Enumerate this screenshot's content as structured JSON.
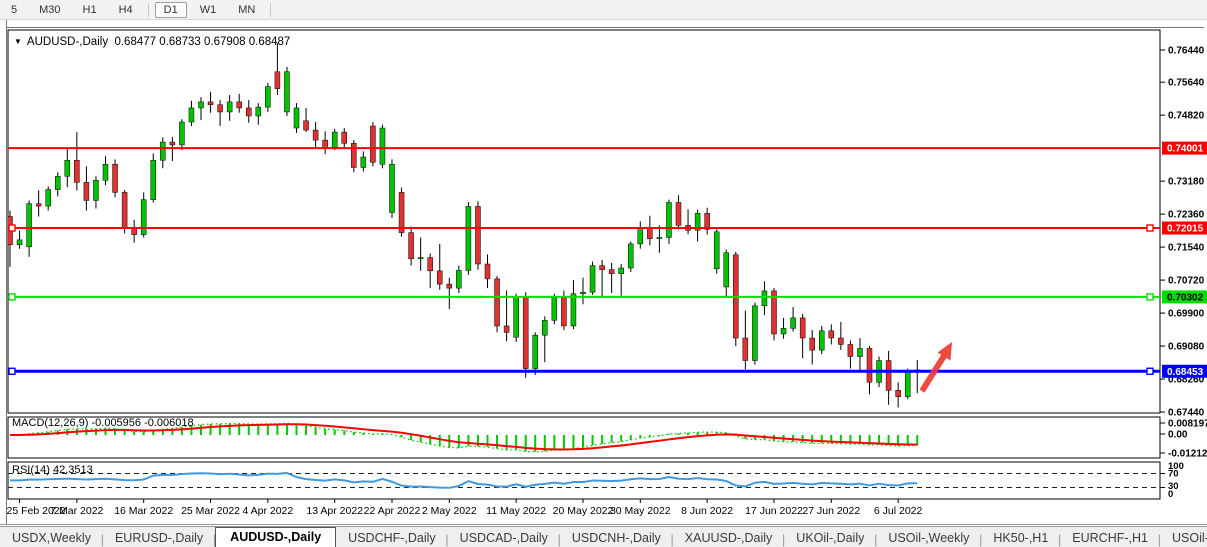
{
  "toolbar": {
    "timeframes": [
      "5",
      "M30",
      "H1",
      "H4",
      "D1",
      "W1",
      "MN"
    ],
    "active_timeframe": "D1"
  },
  "chart": {
    "title": "AUDUSD-,Daily",
    "ohlc_display": "0.68477 0.68733 0.67908 0.68487",
    "dropdown_icon": "▼",
    "up_color": "#00C400",
    "down_color": "#E13232",
    "y_axis_labels": [
      "0.76440",
      "0.75640",
      "0.74820",
      "0.73180",
      "0.72360",
      "0.71540",
      "0.70720",
      "0.69900",
      "0.69080",
      "0.68260",
      "0.67440"
    ],
    "horizontal_lines": [
      {
        "label": "0.74001",
        "price": 0.74001,
        "color": "#FF0000",
        "badge_bg": "#FF0000",
        "badge_fg": "#FFFFFF",
        "width": 2,
        "handles": false
      },
      {
        "label": "0.72015",
        "price": 0.72015,
        "color": "#FF0000",
        "badge_bg": "#FF0000",
        "badge_fg": "#FFFFFF",
        "width": 2,
        "handles": true
      },
      {
        "label": "0.70302",
        "price": 0.70302,
        "color": "#00E000",
        "badge_bg": "#00DD00",
        "badge_fg": "#000000",
        "width": 2,
        "handles": true
      },
      {
        "label": "0.68453",
        "price": 0.68453,
        "color": "#0000FF",
        "badge_bg": "#0000FF",
        "badge_fg": "#FFFFFF",
        "width": 3,
        "handles": true
      }
    ],
    "x_labels": [
      {
        "index": 1,
        "text": "25 Feb 2022"
      },
      {
        "index": 7,
        "text": "7 Mar 2022"
      },
      {
        "index": 14,
        "text": "16 Mar 2022"
      },
      {
        "index": 21,
        "text": "25 Mar 2022"
      },
      {
        "index": 27,
        "text": "4 Apr 2022"
      },
      {
        "index": 34,
        "text": "13 Apr 2022"
      },
      {
        "index": 40,
        "text": "22 Apr 2022"
      },
      {
        "index": 46,
        "text": "2 May 2022"
      },
      {
        "index": 53,
        "text": "11 May 2022"
      },
      {
        "index": 60,
        "text": "20 May 2022"
      },
      {
        "index": 66,
        "text": "30 May 2022"
      },
      {
        "index": 73,
        "text": "8 Jun 2022"
      },
      {
        "index": 80,
        "text": "17 Jun 2022"
      },
      {
        "index": 86,
        "text": "27 Jun 2022"
      },
      {
        "index": 93,
        "text": "6 Jul 2022"
      }
    ],
    "candles": [
      [
        0.723,
        0.7245,
        0.7105,
        0.716
      ],
      [
        0.716,
        0.7195,
        0.715,
        0.7172
      ],
      [
        0.7155,
        0.727,
        0.713,
        0.7262
      ],
      [
        0.7262,
        0.7295,
        0.723,
        0.7256
      ],
      [
        0.7256,
        0.7305,
        0.7245,
        0.7297
      ],
      [
        0.7297,
        0.734,
        0.728,
        0.733
      ],
      [
        0.733,
        0.74,
        0.7303,
        0.737
      ],
      [
        0.737,
        0.744,
        0.7295,
        0.7315
      ],
      [
        0.7315,
        0.7355,
        0.7245,
        0.727
      ],
      [
        0.727,
        0.733,
        0.725,
        0.732
      ],
      [
        0.732,
        0.738,
        0.7308,
        0.736
      ],
      [
        0.736,
        0.7372,
        0.7278,
        0.729
      ],
      [
        0.729,
        0.7296,
        0.7188,
        0.72
      ],
      [
        0.72,
        0.7222,
        0.7165,
        0.7185
      ],
      [
        0.7185,
        0.729,
        0.7178,
        0.7272
      ],
      [
        0.7272,
        0.7387,
        0.7265,
        0.737
      ],
      [
        0.737,
        0.7427,
        0.735,
        0.7415
      ],
      [
        0.7415,
        0.7428,
        0.7368,
        0.7408
      ],
      [
        0.7408,
        0.7472,
        0.7395,
        0.7465
      ],
      [
        0.7465,
        0.7518,
        0.7455,
        0.75
      ],
      [
        0.75,
        0.7527,
        0.747,
        0.7515
      ],
      [
        0.7515,
        0.754,
        0.7488,
        0.7508
      ],
      [
        0.7508,
        0.752,
        0.7455,
        0.749
      ],
      [
        0.749,
        0.7532,
        0.7468,
        0.7515
      ],
      [
        0.7515,
        0.7535,
        0.7488,
        0.75
      ],
      [
        0.75,
        0.752,
        0.7463,
        0.748
      ],
      [
        0.748,
        0.7512,
        0.7458,
        0.7502
      ],
      [
        0.7502,
        0.7562,
        0.749,
        0.7553
      ],
      [
        0.759,
        0.7661,
        0.7532,
        0.7548
      ],
      [
        0.749,
        0.7602,
        0.748,
        0.759
      ],
      [
        0.745,
        0.7512,
        0.7438,
        0.75
      ],
      [
        0.7468,
        0.75,
        0.744,
        0.7445
      ],
      [
        0.7445,
        0.7465,
        0.7398,
        0.742
      ],
      [
        0.742,
        0.7442,
        0.7385,
        0.7402
      ],
      [
        0.7402,
        0.7448,
        0.7395,
        0.744
      ],
      [
        0.744,
        0.745,
        0.7398,
        0.7412
      ],
      [
        0.7412,
        0.742,
        0.734,
        0.7352
      ],
      [
        0.7352,
        0.7392,
        0.7342,
        0.7378
      ],
      [
        0.7455,
        0.7465,
        0.7355,
        0.7365
      ],
      [
        0.736,
        0.7458,
        0.735,
        0.745
      ],
      [
        0.724,
        0.7372,
        0.7226,
        0.736
      ],
      [
        0.729,
        0.7302,
        0.718,
        0.719
      ],
      [
        0.719,
        0.7205,
        0.7108,
        0.7125
      ],
      [
        0.7125,
        0.7178,
        0.7095,
        0.7128
      ],
      [
        0.7128,
        0.7138,
        0.7052,
        0.7095
      ],
      [
        0.7095,
        0.7162,
        0.7048,
        0.7062
      ],
      [
        0.7062,
        0.7078,
        0.7,
        0.7052
      ],
      [
        0.7052,
        0.7108,
        0.704,
        0.7096
      ],
      [
        0.7096,
        0.7266,
        0.7085,
        0.7255
      ],
      [
        0.7255,
        0.7268,
        0.7098,
        0.7112
      ],
      [
        0.7112,
        0.7136,
        0.7052,
        0.7075
      ],
      [
        0.7075,
        0.7082,
        0.6942,
        0.6958
      ],
      [
        0.6958,
        0.7046,
        0.692,
        0.6942
      ],
      [
        0.693,
        0.7038,
        0.6918,
        0.703
      ],
      [
        0.703,
        0.7042,
        0.6829,
        0.6852
      ],
      [
        0.6852,
        0.6942,
        0.6836,
        0.6935
      ],
      [
        0.6935,
        0.6982,
        0.6868,
        0.6972
      ],
      [
        0.6972,
        0.7038,
        0.6962,
        0.7028
      ],
      [
        0.7028,
        0.7046,
        0.6948,
        0.6958
      ],
      [
        0.6958,
        0.7072,
        0.695,
        0.7038
      ],
      [
        0.7038,
        0.7078,
        0.7012,
        0.7042
      ],
      [
        0.7042,
        0.7118,
        0.7035,
        0.7108
      ],
      [
        0.7108,
        0.7122,
        0.7032,
        0.7098
      ],
      [
        0.7098,
        0.7115,
        0.704,
        0.7088
      ],
      [
        0.7088,
        0.7112,
        0.7033,
        0.7102
      ],
      [
        0.7102,
        0.7168,
        0.7092,
        0.7162
      ],
      [
        0.7162,
        0.7218,
        0.715,
        0.7202
      ],
      [
        0.7202,
        0.7232,
        0.7158,
        0.7175
      ],
      [
        0.7175,
        0.7208,
        0.714,
        0.7178
      ],
      [
        0.7178,
        0.7272,
        0.7162,
        0.7265
      ],
      [
        0.7265,
        0.7283,
        0.7198,
        0.7208
      ],
      [
        0.7208,
        0.7248,
        0.7186,
        0.7196
      ],
      [
        0.7196,
        0.7247,
        0.7168,
        0.7238
      ],
      [
        0.7238,
        0.7252,
        0.7185,
        0.7198
      ],
      [
        0.71,
        0.7202,
        0.7088,
        0.7192
      ],
      [
        0.7055,
        0.7148,
        0.7032,
        0.714
      ],
      [
        0.7135,
        0.7142,
        0.6908,
        0.6928
      ],
      [
        0.6928,
        0.6996,
        0.685,
        0.6872
      ],
      [
        0.6872,
        0.7016,
        0.6862,
        0.7008
      ],
      [
        0.7008,
        0.7069,
        0.6985,
        0.7045
      ],
      [
        0.7045,
        0.7052,
        0.6922,
        0.6938
      ],
      [
        0.6938,
        0.6978,
        0.6926,
        0.6952
      ],
      [
        0.6952,
        0.7005,
        0.6944,
        0.6978
      ],
      [
        0.6978,
        0.6988,
        0.6878,
        0.6928
      ],
      [
        0.6928,
        0.6948,
        0.6862,
        0.6898
      ],
      [
        0.6898,
        0.6958,
        0.6888,
        0.6946
      ],
      [
        0.6946,
        0.6962,
        0.6912,
        0.6928
      ],
      [
        0.6928,
        0.6968,
        0.6898,
        0.6912
      ],
      [
        0.6912,
        0.6922,
        0.6852,
        0.6882
      ],
      [
        0.6882,
        0.6928,
        0.6848,
        0.6902
      ],
      [
        0.6902,
        0.6908,
        0.6788,
        0.6818
      ],
      [
        0.6818,
        0.6882,
        0.6806,
        0.6872
      ],
      [
        0.6872,
        0.6896,
        0.6762,
        0.6798
      ],
      [
        0.6798,
        0.6818,
        0.6755,
        0.6782
      ],
      [
        0.6782,
        0.6852,
        0.6776,
        0.6846
      ],
      [
        0.68477,
        0.68733,
        0.67908,
        0.68487
      ]
    ],
    "trend_arrow": {
      "color": "#EE3B30"
    }
  },
  "macd": {
    "label": "MACD(12,26,9)",
    "values_text": "-0.005956 -0.006018",
    "fast": 12,
    "slow": 26,
    "signal": 9,
    "scale_labels": [
      "0.008197",
      "0.00",
      "-0.01212"
    ],
    "hist_color": "#00C800",
    "signal_color": "#FF0000"
  },
  "rsi": {
    "label": "RSI(14)",
    "value_text": "42.3513",
    "period": 14,
    "scale_labels": [
      "100",
      "70",
      "30",
      "0"
    ],
    "levels": [
      70,
      30
    ],
    "line_color": "#3E9ADF"
  },
  "tabbar": {
    "items": [
      "USDX,Weekly",
      "EURUSD-,Daily",
      "AUDUSD-,Daily",
      "USDCHF-,Daily",
      "USDCAD-,Daily",
      "USDCNH-,Daily",
      "XAUUSD-,Daily",
      "UKOil-,Daily",
      "USOil-,Weekly",
      "HK50-,H1",
      "EURCHF-,H1",
      "USOil-,H"
    ],
    "active_label": "AUDUSD-,Daily",
    "scroll_left_icon": "◂",
    "scroll_right_icon": "▸"
  }
}
